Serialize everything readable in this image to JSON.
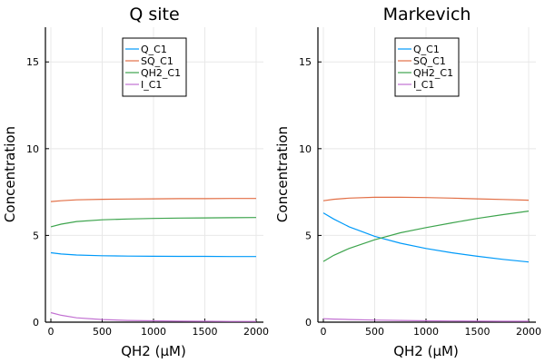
{
  "chart_data": [
    {
      "type": "line",
      "title": "Q site",
      "xlabel": "QH2 (μM)",
      "ylabel": "Concentration",
      "xlim": [
        0,
        2000
      ],
      "ylim": [
        0,
        17
      ],
      "xticks": [
        0,
        500,
        1000,
        1500,
        2000
      ],
      "yticks": [
        0,
        5,
        10,
        15
      ],
      "grid": true,
      "legend": "top-center",
      "x": [
        0,
        100,
        250,
        500,
        750,
        1000,
        1250,
        1500,
        1750,
        2000
      ],
      "series": [
        {
          "name": "Q_C1",
          "color": "#009af9",
          "values": [
            4.0,
            3.93,
            3.87,
            3.83,
            3.81,
            3.8,
            3.79,
            3.79,
            3.78,
            3.78
          ]
        },
        {
          "name": "SQ_C1",
          "color": "#e26f46",
          "values": [
            6.95,
            7.0,
            7.05,
            7.08,
            7.1,
            7.11,
            7.12,
            7.12,
            7.13,
            7.13
          ]
        },
        {
          "name": "QH2_C1",
          "color": "#3da44d",
          "values": [
            5.5,
            5.65,
            5.8,
            5.9,
            5.95,
            5.98,
            6.0,
            6.01,
            6.02,
            6.03
          ]
        },
        {
          "name": "I_C1",
          "color": "#c271d2",
          "values": [
            0.55,
            0.4,
            0.25,
            0.15,
            0.1,
            0.08,
            0.06,
            0.05,
            0.04,
            0.04
          ]
        }
      ]
    },
    {
      "type": "line",
      "title": "Markevich",
      "xlabel": "QH2 (μM)",
      "ylabel": "Concentration",
      "xlim": [
        0,
        2000
      ],
      "ylim": [
        0,
        17
      ],
      "xticks": [
        0,
        500,
        1000,
        1500,
        2000
      ],
      "yticks": [
        0,
        5,
        10,
        15
      ],
      "grid": true,
      "legend": "top-center",
      "x": [
        0,
        100,
        250,
        500,
        750,
        1000,
        1250,
        1500,
        1750,
        2000
      ],
      "series": [
        {
          "name": "Q_C1",
          "color": "#009af9",
          "values": [
            6.3,
            5.95,
            5.5,
            4.95,
            4.55,
            4.25,
            4.0,
            3.8,
            3.62,
            3.47
          ]
        },
        {
          "name": "SQ_C1",
          "color": "#e26f46",
          "values": [
            7.0,
            7.08,
            7.15,
            7.2,
            7.2,
            7.18,
            7.15,
            7.11,
            7.07,
            7.03
          ]
        },
        {
          "name": "QH2_C1",
          "color": "#3da44d",
          "values": [
            3.5,
            3.85,
            4.25,
            4.75,
            5.15,
            5.45,
            5.72,
            5.98,
            6.2,
            6.4
          ]
        },
        {
          "name": "I_C1",
          "color": "#c271d2",
          "values": [
            0.2,
            0.18,
            0.15,
            0.12,
            0.1,
            0.08,
            0.07,
            0.06,
            0.05,
            0.05
          ]
        }
      ]
    }
  ]
}
